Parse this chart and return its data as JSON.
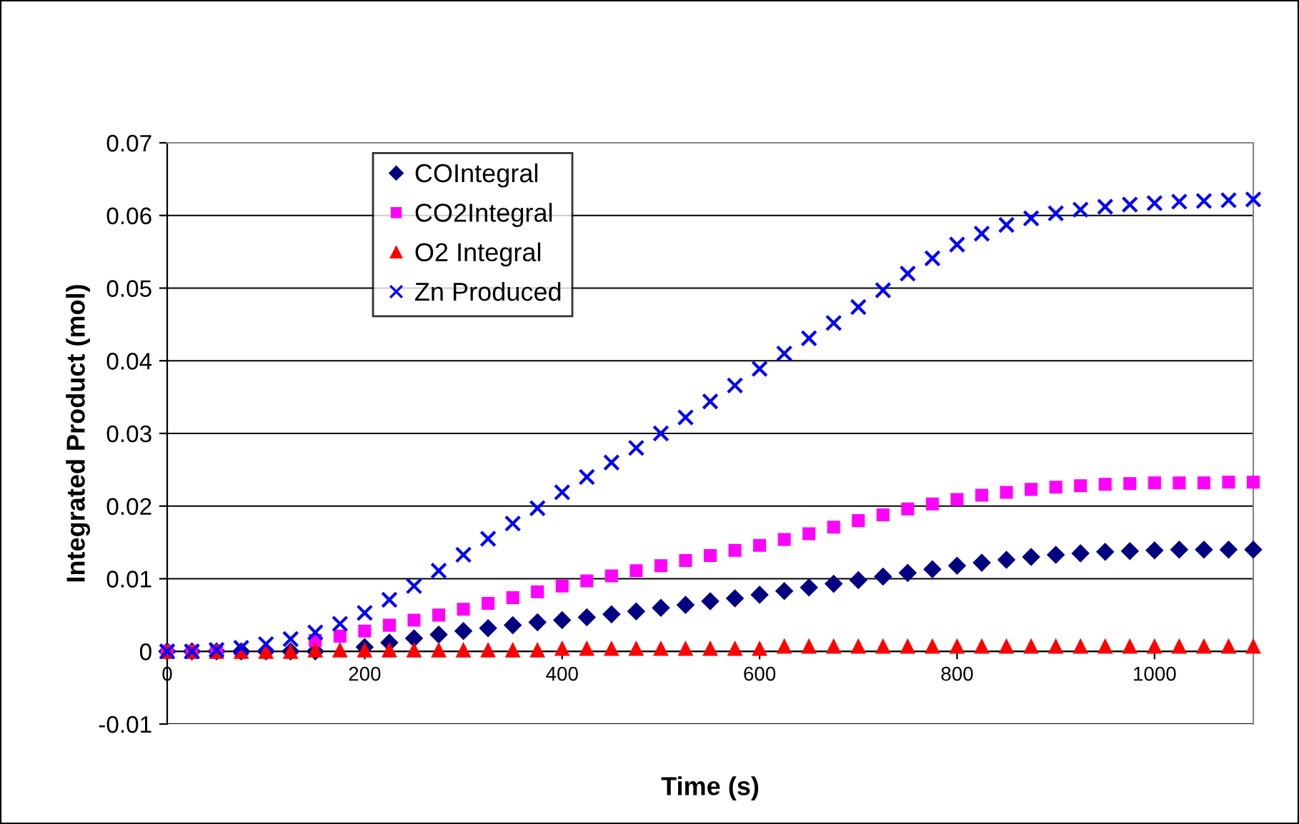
{
  "chart_data": {
    "type": "scatter",
    "xlabel": "Time (s)",
    "ylabel": "Integrated Product (mol)",
    "xlim": [
      0,
      1100
    ],
    "xticks": [
      0,
      200,
      400,
      600,
      800,
      1000
    ],
    "ylim": [
      -0.01,
      0.07
    ],
    "yticks": [
      -0.01,
      0,
      0.01,
      0.02,
      0.03,
      0.04,
      0.05,
      0.06,
      0.07
    ],
    "grid": "y",
    "legend": "top left",
    "x": [
      0,
      25,
      50,
      75,
      100,
      125,
      150,
      175,
      200,
      225,
      250,
      275,
      300,
      325,
      350,
      375,
      400,
      425,
      450,
      475,
      500,
      525,
      550,
      575,
      600,
      625,
      650,
      675,
      700,
      725,
      750,
      775,
      800,
      825,
      850,
      875,
      900,
      925,
      950,
      975,
      1000,
      1025,
      1050,
      1075,
      1100
    ],
    "series": [
      {
        "name": "COIntegral",
        "color": "#000080",
        "marker": "diamond",
        "values": [
          0,
          0,
          0,
          0,
          0,
          0,
          0,
          null,
          0.0006,
          0.0012,
          0.0018,
          0.0023,
          0.0028,
          0.0032,
          0.0036,
          0.004,
          0.0043,
          0.0047,
          0.0051,
          0.0055,
          0.006,
          0.0064,
          0.0069,
          0.0073,
          0.0078,
          0.0083,
          0.0088,
          0.0093,
          0.0098,
          0.0103,
          0.0108,
          0.0113,
          0.0118,
          0.0122,
          0.0126,
          0.013,
          0.0133,
          0.0135,
          0.0137,
          0.0138,
          0.0139,
          0.014,
          0.014,
          0.014,
          0.014
        ]
      },
      {
        "name": "CO2Integral",
        "color": "#ff00ff",
        "marker": "square",
        "values": [
          0,
          0,
          0,
          null,
          null,
          null,
          0.0015,
          0.0021,
          0.0028,
          0.0036,
          0.0043,
          0.005,
          0.0058,
          0.0066,
          0.0074,
          0.0082,
          0.009,
          0.0097,
          0.0104,
          0.0111,
          0.0118,
          0.0125,
          0.0132,
          0.0139,
          0.0146,
          0.0154,
          0.0162,
          0.0171,
          0.018,
          0.0188,
          0.0196,
          0.0203,
          0.0209,
          0.0215,
          0.0219,
          0.0223,
          0.0226,
          0.0228,
          0.023,
          0.0231,
          0.0232,
          0.0232,
          0.0232,
          0.0233,
          0.0233
        ]
      },
      {
        "name": "O2 Integral",
        "color": "#ff0000",
        "marker": "triangle",
        "values": [
          0,
          0,
          0,
          0,
          0,
          0,
          0.0002,
          0.0002,
          0.0002,
          0.0002,
          0.0002,
          0.0002,
          0.0002,
          0.0002,
          0.0002,
          0.0002,
          0.0004,
          0.0004,
          0.0004,
          0.0004,
          0.0004,
          0.0004,
          0.0004,
          0.0004,
          0.0004,
          0.0007,
          0.0007,
          0.0007,
          0.0007,
          0.0007,
          0.0007,
          0.0007,
          0.0007,
          0.0007,
          0.0007,
          0.0007,
          0.0007,
          0.0007,
          0.0007,
          0.0007,
          0.0007,
          0.0007,
          0.0007,
          0.0007,
          0.0007
        ]
      },
      {
        "name": "Zn Produced",
        "color": "#0000ff",
        "marker": "cross",
        "values": [
          0,
          0,
          0.0002,
          0.0005,
          0.001,
          0.0017,
          0.0026,
          0.0038,
          0.0053,
          0.0071,
          0.009,
          0.0111,
          0.0133,
          0.0155,
          0.0176,
          0.0197,
          0.0219,
          0.024,
          0.026,
          0.028,
          0.03,
          0.0322,
          0.0344,
          0.0366,
          0.0389,
          0.041,
          0.0431,
          0.0452,
          0.0474,
          0.0497,
          0.052,
          0.0541,
          0.056,
          0.0575,
          0.0587,
          0.0596,
          0.0603,
          0.0608,
          0.0612,
          0.0615,
          0.0617,
          0.0619,
          0.062,
          0.0621,
          0.0622
        ]
      }
    ]
  }
}
